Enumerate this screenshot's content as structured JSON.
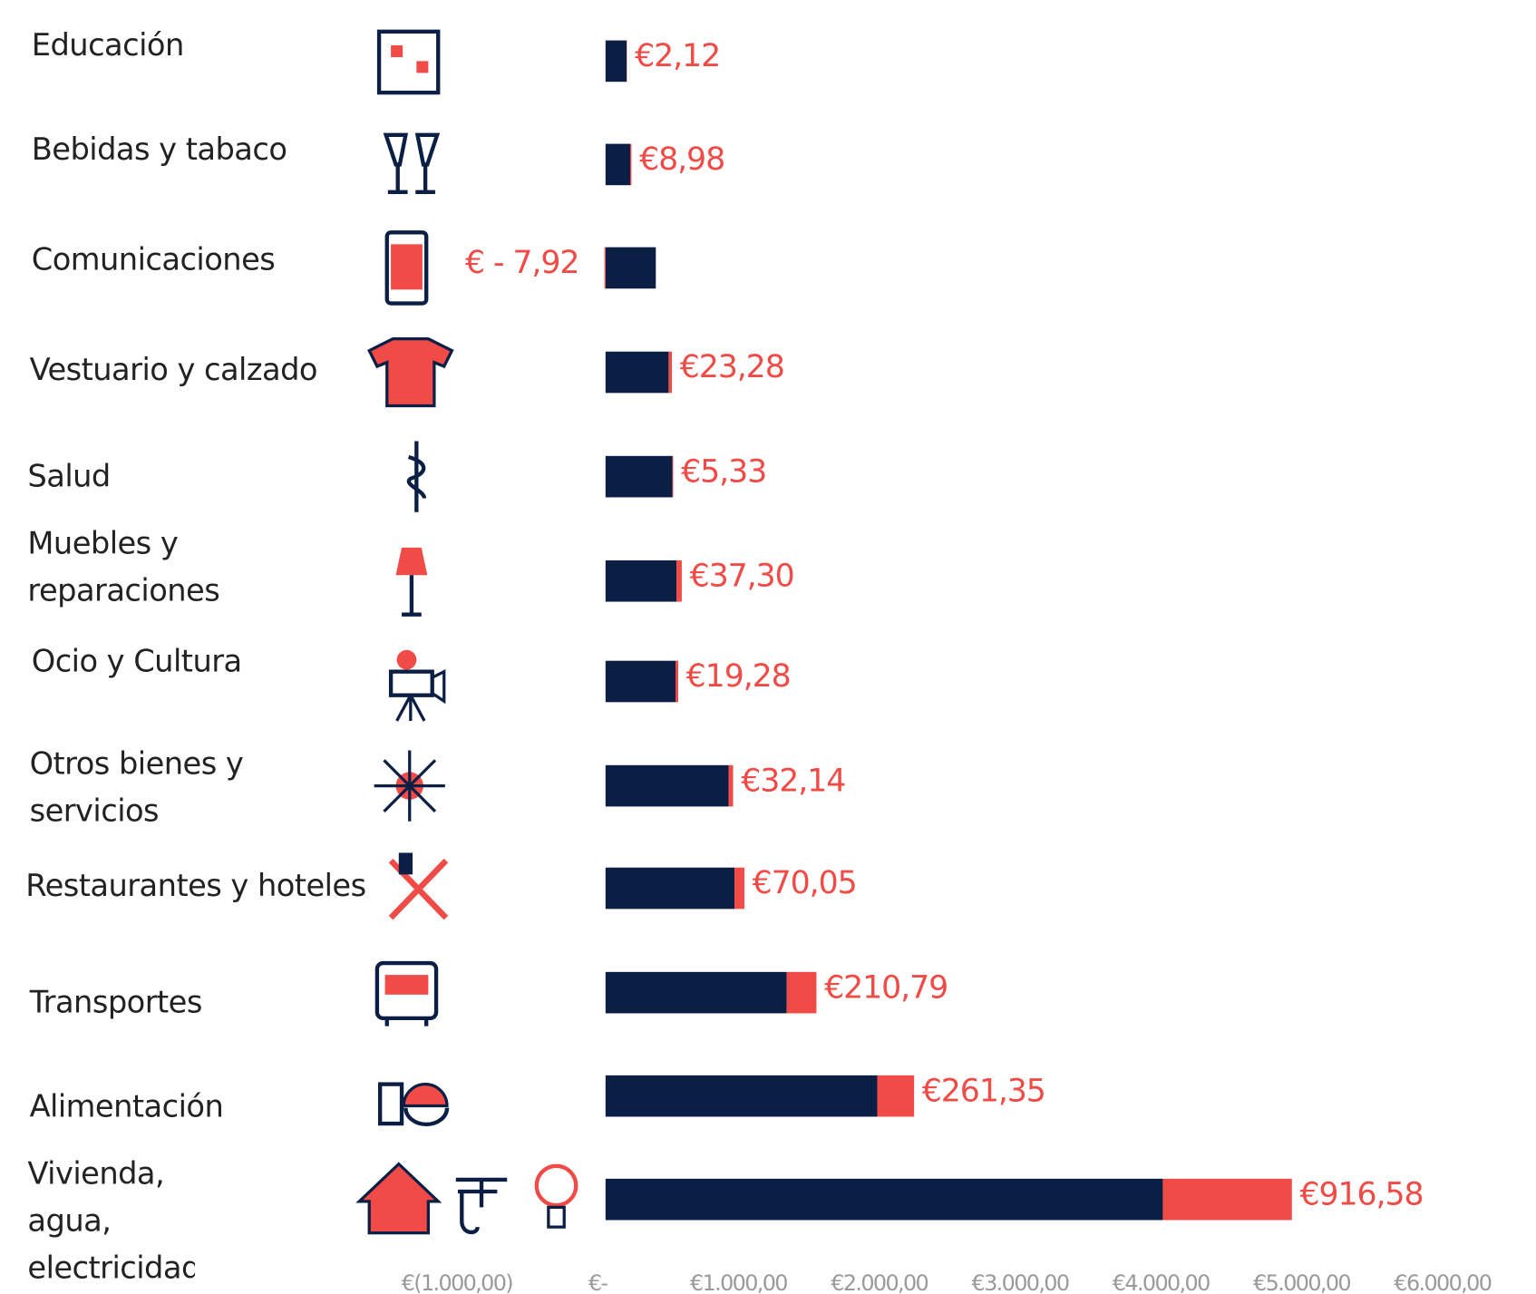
{
  "chart_data": {
    "type": "stacked_barh",
    "categories": [
      "Educación",
      "Bebidas y tabaco",
      "Comunicaciones",
      "Vestuario y calzado",
      "Salud",
      "Muebles y reparaciones",
      "Ocio y Cultura",
      "Otros bienes y servicios",
      "Restaurantes y hoteles",
      "Transportes",
      "Alimentación",
      "Vivienda, agua, electricidad"
    ],
    "series": [
      {
        "color": "#0b1f44",
        "values": [
          150,
          175,
          357,
          448,
          475,
          504,
          497,
          874,
          916,
          1287,
          1930,
          3958
        ]
      },
      {
        "color": "#f04b46",
        "values": [
          2.12,
          8.98,
          -7.92,
          23.28,
          5.33,
          37.3,
          19.28,
          32.14,
          70.05,
          210.79,
          261.35,
          916.58
        ],
        "value_labels": [
          "€2,12",
          "€8,98",
          "€ - 7,92",
          "€23,28",
          "€5,33",
          "€37,30",
          "€19,28",
          "€32,14",
          "€70,05",
          "€210,79",
          "€261,35",
          "€916,58"
        ]
      }
    ],
    "xlim": [
      -1000,
      6000
    ],
    "xticks": [
      {
        "value": -1000,
        "label": "€(1.000,00)"
      },
      {
        "value": 0,
        "label": "€-"
      },
      {
        "value": 1000,
        "label": "€1.000,00"
      },
      {
        "value": 2000,
        "label": "€2.000,00"
      },
      {
        "value": 3000,
        "label": "€3.000,00"
      },
      {
        "value": 4000,
        "label": "€4.000,00"
      },
      {
        "value": 5000,
        "label": "€5.000,00"
      },
      {
        "value": 6000,
        "label": "€6.000,00"
      }
    ]
  }
}
